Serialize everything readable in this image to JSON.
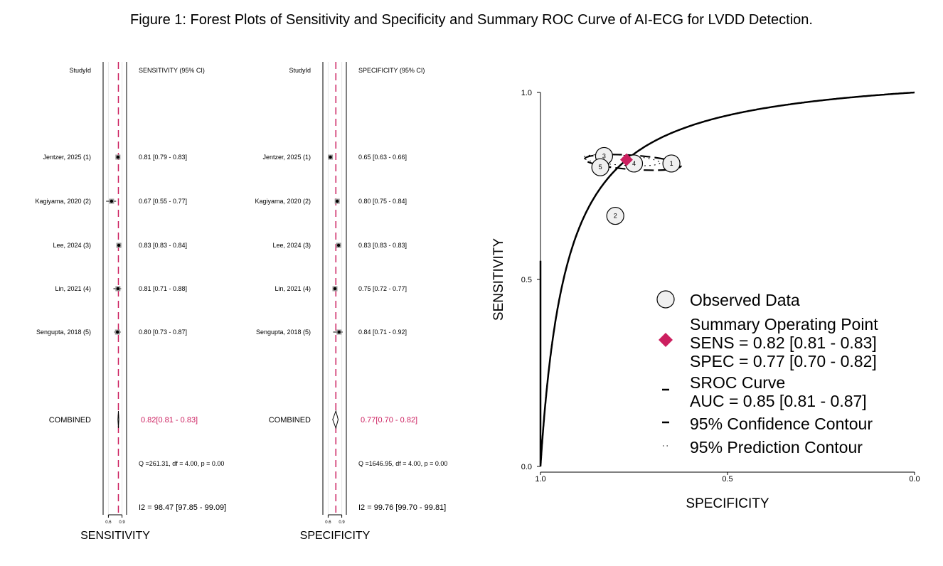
{
  "figure_title": "Figure 1: Forest Plots of Sensitivity and Specificity and Summary ROC Curve of AI-ECG for LVDD Detection.",
  "colors": {
    "accent": "#cc1f5f",
    "point_fill": "#f0f0f0",
    "line": "#000000",
    "box": "#999999"
  },
  "chart_data": [
    {
      "type": "forest",
      "measure": "SENSITIVITY",
      "xlabel": "SENSITIVITY",
      "id_header": "StudyId",
      "ci_header": "SENSITIVITY (95% CI)",
      "x_ticks": [
        "0.6",
        "0.9"
      ],
      "xlim": [
        0.5,
        1.0
      ],
      "pooled": 0.82,
      "studies": [
        {
          "id": "Jentzer, 2025 (1)",
          "est": 0.81,
          "lo": 0.79,
          "hi": 0.83,
          "label": "0.81 [0.79 - 0.83]"
        },
        {
          "id": "Kagiyama, 2020 (2)",
          "est": 0.67,
          "lo": 0.55,
          "hi": 0.77,
          "label": "0.67 [0.55 - 0.77]"
        },
        {
          "id": "Lee, 2024 (3)",
          "est": 0.83,
          "lo": 0.83,
          "hi": 0.84,
          "label": "0.83 [0.83 - 0.84]"
        },
        {
          "id": "Lin, 2021 (4)",
          "est": 0.81,
          "lo": 0.71,
          "hi": 0.88,
          "label": "0.81 [0.71 - 0.88]"
        },
        {
          "id": "Sengupta, 2018 (5)",
          "est": 0.8,
          "lo": 0.73,
          "hi": 0.87,
          "label": "0.80 [0.73 - 0.87]"
        }
      ],
      "combined": {
        "id": "COMBINED",
        "est": 0.82,
        "lo": 0.81,
        "hi": 0.83,
        "label": "0.82[0.81 - 0.83]"
      },
      "heterogeneity": "Q =261.31, df = 4.00, p =  0.00",
      "i2": "I2 = 98.47 [97.85 - 99.09]"
    },
    {
      "type": "forest",
      "measure": "SPECIFICITY",
      "xlabel": "SPECIFICITY",
      "id_header": "StudyId",
      "ci_header": "SPECIFICITY (95% CI)",
      "x_ticks": [
        "0.6",
        "0.9"
      ],
      "xlim": [
        0.5,
        1.0
      ],
      "pooled": 0.77,
      "studies": [
        {
          "id": "Jentzer, 2025 (1)",
          "est": 0.65,
          "lo": 0.63,
          "hi": 0.66,
          "label": "0.65 [0.63 - 0.66]"
        },
        {
          "id": "Kagiyama, 2020 (2)",
          "est": 0.8,
          "lo": 0.75,
          "hi": 0.84,
          "label": "0.80 [0.75 - 0.84]"
        },
        {
          "id": "Lee, 2024 (3)",
          "est": 0.83,
          "lo": 0.83,
          "hi": 0.83,
          "label": "0.83 [0.83 - 0.83]"
        },
        {
          "id": "Lin, 2021 (4)",
          "est": 0.75,
          "lo": 0.72,
          "hi": 0.77,
          "label": "0.75 [0.72 - 0.77]"
        },
        {
          "id": "Sengupta, 2018 (5)",
          "est": 0.84,
          "lo": 0.71,
          "hi": 0.92,
          "label": "0.84 [0.71 - 0.92]"
        }
      ],
      "combined": {
        "id": "COMBINED",
        "est": 0.77,
        "lo": 0.7,
        "hi": 0.82,
        "label": "0.77[0.70 - 0.82]"
      },
      "heterogeneity": "Q =1646.95, df = 4.00, p =  0.00",
      "i2": "I2 = 99.76 [99.70 - 99.81]"
    },
    {
      "type": "sroc",
      "xlabel": "SPECIFICITY",
      "ylabel": "SENSITIVITY",
      "x_reversed": true,
      "xlim": [
        1.0,
        0.0
      ],
      "ylim": [
        0.0,
        1.0
      ],
      "x_ticks": [
        "1.0",
        "0.5",
        "0.0"
      ],
      "y_ticks": [
        "0.0",
        "0.5",
        "1.0"
      ],
      "observed": [
        {
          "label": "1",
          "spec": 0.65,
          "sens": 0.81
        },
        {
          "label": "2",
          "spec": 0.8,
          "sens": 0.67
        },
        {
          "label": "3",
          "spec": 0.83,
          "sens": 0.83
        },
        {
          "label": "4",
          "spec": 0.75,
          "sens": 0.81
        },
        {
          "label": "5",
          "spec": 0.84,
          "sens": 0.8
        }
      ],
      "summary_point": {
        "spec": 0.77,
        "sens": 0.82
      },
      "auc": 0.85,
      "legend": [
        {
          "key": "observed",
          "lines": [
            "Observed Data"
          ]
        },
        {
          "key": "summary",
          "lines": [
            "Summary Operating Point",
            "SENS = 0.82 [0.81 - 0.83]",
            "SPEC = 0.77 [0.70 - 0.82]"
          ]
        },
        {
          "key": "sroc",
          "lines": [
            "SROC Curve",
            "AUC = 0.85 [0.81 - 0.87]"
          ]
        },
        {
          "key": "confidence",
          "lines": [
            "95% Confidence Contour"
          ]
        },
        {
          "key": "prediction",
          "lines": [
            "95% Prediction Contour"
          ]
        }
      ]
    }
  ]
}
